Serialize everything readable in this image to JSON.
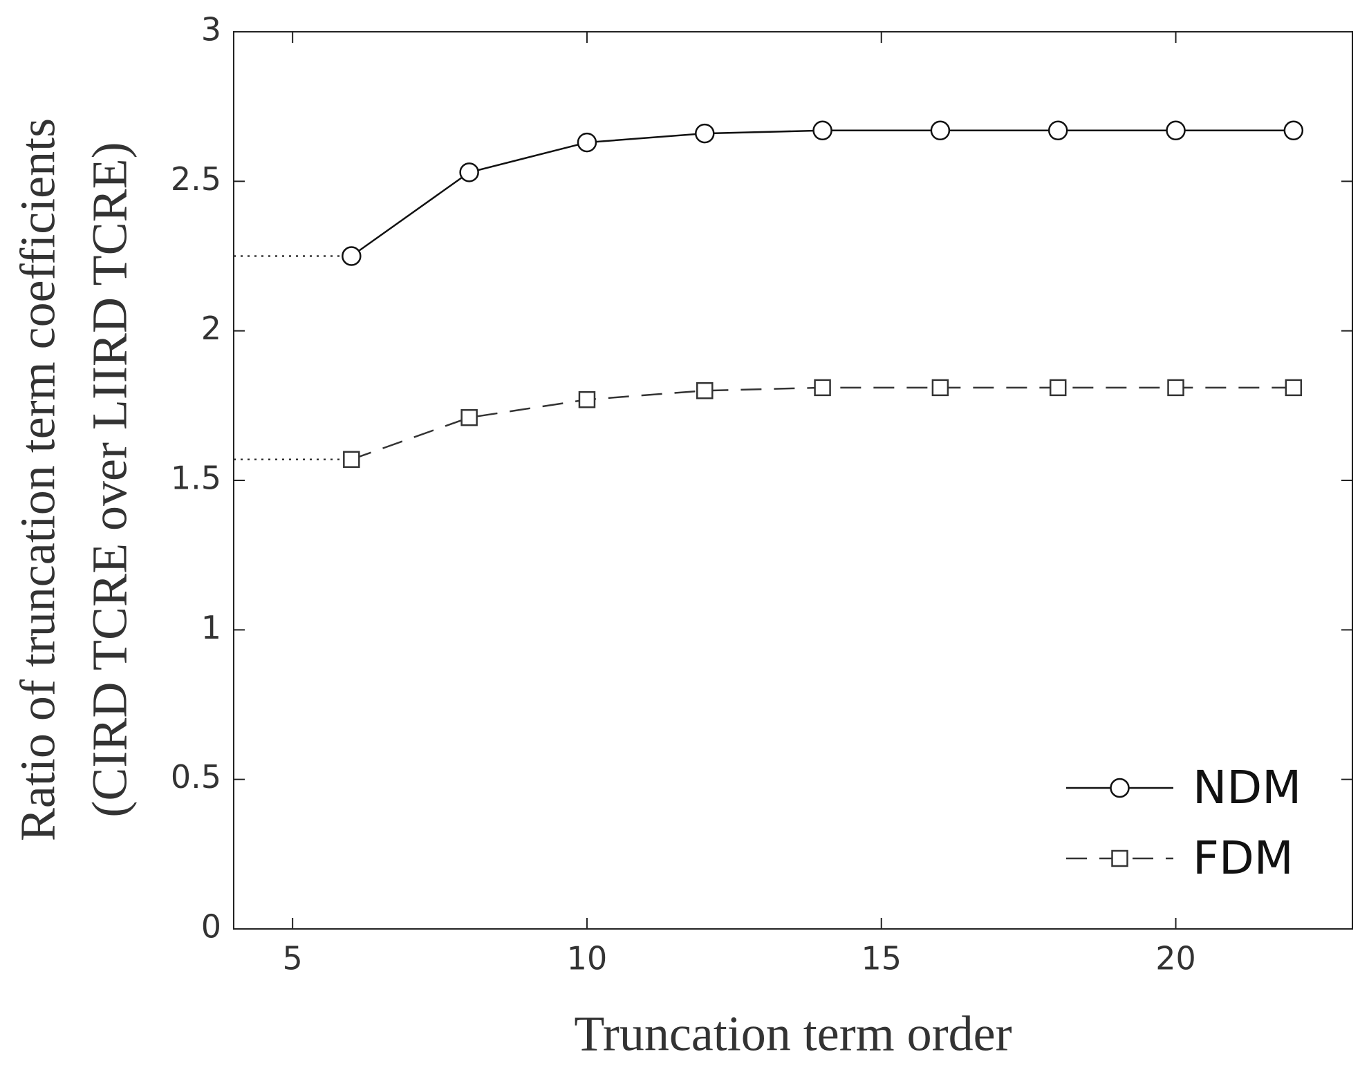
{
  "chart_data": {
    "type": "line",
    "xlabel": "Truncation term order",
    "ylabel": [
      "Ratio of truncation term coefficients",
      "(CIRD TCRE over LIIRD TCRE)"
    ],
    "x": [
      6,
      8,
      10,
      12,
      14,
      16,
      18,
      20,
      22
    ],
    "series": [
      {
        "name": "NDM",
        "color": "#111111",
        "dash": "solid",
        "marker": "circle",
        "values": [
          2.25,
          2.53,
          2.63,
          2.66,
          2.67,
          2.67,
          2.67,
          2.67,
          2.67
        ]
      },
      {
        "name": "FDM",
        "color": "#333333",
        "dash": "dashed",
        "marker": "square",
        "values": [
          1.57,
          1.71,
          1.77,
          1.8,
          1.81,
          1.81,
          1.81,
          1.81,
          1.81
        ]
      }
    ],
    "xlim": [
      4,
      23
    ],
    "xticks": [
      5,
      10,
      15,
      20
    ],
    "ylim": [
      0,
      3
    ],
    "yticks": [
      0,
      0.5,
      1,
      1.5,
      2,
      2.5,
      3
    ],
    "grid": false,
    "legend": "lower right"
  }
}
